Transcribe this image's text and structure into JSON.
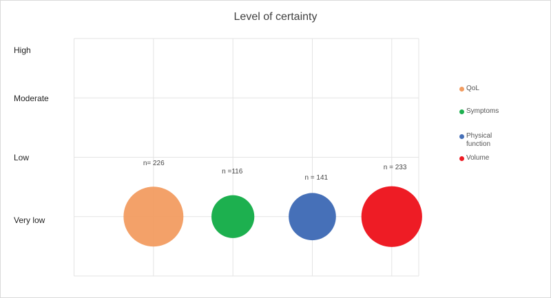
{
  "chart_data": {
    "type": "bubble",
    "title": "Level of certainty",
    "y_categories": [
      "Very low",
      "Low",
      "Moderate",
      "High"
    ],
    "xlim": [
      0,
      4.34
    ],
    "grid": true,
    "legend_position": "right",
    "series": [
      {
        "name": "QoL",
        "x": 1,
        "y": "Very low",
        "n": 226,
        "label": "n= 226",
        "color": "#F29C61"
      },
      {
        "name": "Symptoms",
        "x": 2,
        "y": "Very low",
        "n": 116,
        "label": "n =116",
        "color": "#1DB04F"
      },
      {
        "name": "Physical function",
        "x": 3,
        "y": "Very low",
        "n": 141,
        "label": "n = 141",
        "color": "#4670B8"
      },
      {
        "name": "Volume",
        "x": 4,
        "y": "Very low",
        "n": 233,
        "label": "n = 233",
        "color": "#EE1C25"
      }
    ]
  }
}
